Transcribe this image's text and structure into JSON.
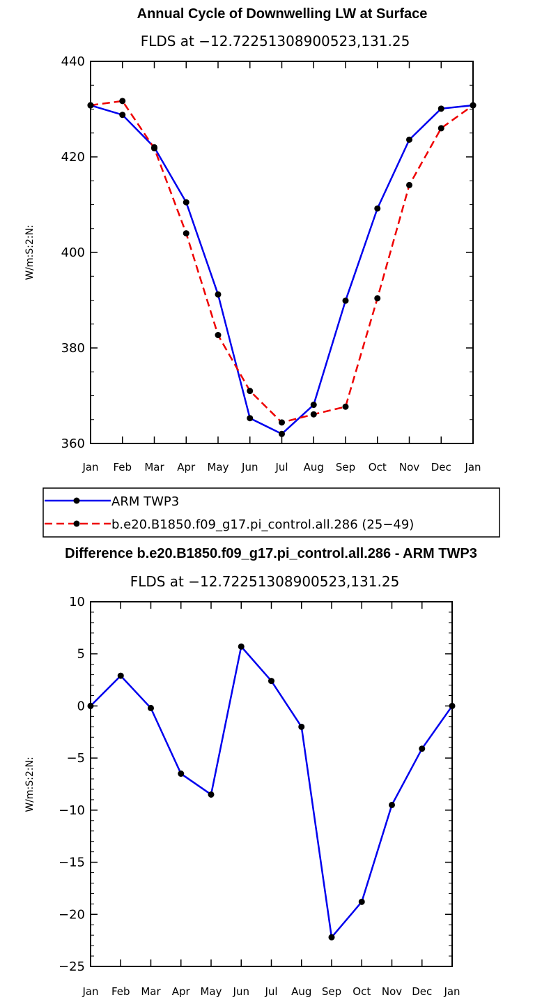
{
  "colors": {
    "obs": "#0000ee",
    "model": "#ee0000",
    "marker": "#000000",
    "axis": "#000000"
  },
  "chart_data": [
    {
      "type": "line",
      "title": "Annual Cycle of Downwelling LW at Surface",
      "subtitle": "FLDS at −12.72251308900523,131.25",
      "ylabel": "W/m:S:2:N:",
      "xlabel": "",
      "categories": [
        "Jan",
        "Feb",
        "Mar",
        "Apr",
        "May",
        "Jun",
        "Jul",
        "Aug",
        "Sep",
        "Oct",
        "Nov",
        "Dec",
        "Jan"
      ],
      "ylim": [
        360,
        440
      ],
      "yticks": [
        360,
        380,
        400,
        420,
        440
      ],
      "yticklabels": [
        "360",
        "380",
        "400",
        "420",
        "440"
      ],
      "series": [
        {
          "name": "ARM TWP3",
          "style": "solid",
          "color": "#0000ee",
          "values": [
            430.8,
            428.8,
            422.0,
            410.5,
            391.2,
            365.3,
            362.0,
            368.1,
            389.9,
            409.2,
            423.6,
            430.1,
            430.8
          ]
        },
        {
          "name": "b.e20.B1850.f09_g17.pi_control.all.286 (25−49)",
          "style": "dashed",
          "color": "#ee0000",
          "values": [
            430.8,
            431.7,
            421.8,
            404.0,
            382.7,
            371.0,
            364.4,
            366.1,
            367.7,
            390.4,
            414.1,
            426.0,
            430.8
          ]
        }
      ],
      "legend": "below"
    },
    {
      "type": "line",
      "title": "Difference b.e20.B1850.f09_g17.pi_control.all.286 - ARM TWP3",
      "subtitle": "FLDS at −12.72251308900523,131.25",
      "ylabel": "W/m:S:2:N:",
      "xlabel": "",
      "categories": [
        "Jan",
        "Feb",
        "Mar",
        "Apr",
        "May",
        "Jun",
        "Jul",
        "Aug",
        "Sep",
        "Oct",
        "Nov",
        "Dec",
        "Jan"
      ],
      "ylim": [
        -25,
        10
      ],
      "yticks": [
        -25,
        -20,
        -15,
        -10,
        -5,
        0,
        5,
        10
      ],
      "yticklabels": [
        "−25",
        "−20",
        "−15",
        "−10",
        "−5",
        "0",
        "5",
        "10"
      ],
      "series": [
        {
          "style": "solid",
          "color": "#0000ee",
          "values": [
            0.0,
            2.9,
            -0.2,
            -6.5,
            -8.5,
            5.7,
            2.4,
            -2.0,
            -22.2,
            -18.8,
            -9.5,
            -4.1,
            0.0
          ]
        }
      ]
    }
  ]
}
